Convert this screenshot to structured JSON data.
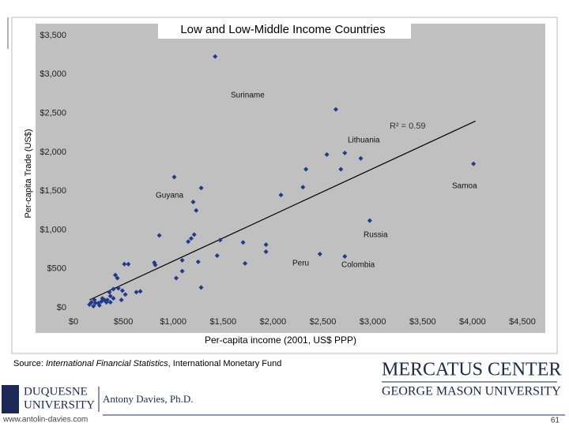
{
  "chart_data": {
    "type": "scatter",
    "title": "Low and Low-Middle Income Countries",
    "x_label": "Per-capita income (2001, US$ PPP)",
    "y_label": "Per-capita Trade (US$)",
    "x": [
      1420,
      2630,
      2540,
      2720,
      2880,
      2330,
      2680,
      4010,
      1010,
      2300,
      2080,
      1280,
      1200,
      1230,
      2970,
      860,
      1210,
      1180,
      1150,
      1470,
      1700,
      1930,
      1930,
      1090,
      1440,
      810,
      820,
      1250,
      1720,
      2470,
      2720,
      510,
      550,
      1090,
      1030,
      1280,
      420,
      440,
      400,
      360,
      450,
      490,
      630,
      670,
      400,
      290,
      370,
      210,
      180,
      200,
      250,
      280,
      330,
      160,
      220,
      260,
      340,
      480,
      520,
      370,
      310
    ],
    "values": [
      3230,
      2550,
      1970,
      1990,
      1920,
      1780,
      1780,
      1850,
      1680,
      1550,
      1450,
      1540,
      1360,
      1250,
      1120,
      930,
      940,
      890,
      850,
      870,
      840,
      810,
      720,
      610,
      670,
      580,
      550,
      590,
      570,
      690,
      660,
      560,
      560,
      470,
      380,
      260,
      420,
      380,
      240,
      200,
      250,
      220,
      200,
      210,
      120,
      120,
      70,
      100,
      70,
      20,
      60,
      80,
      70,
      40,
      60,
      30,
      100,
      100,
      170,
      150,
      100
    ],
    "color": "#1f3a8a",
    "trendline": {
      "x": [
        160,
        4030
      ],
      "y": [
        100,
        2400
      ]
    },
    "r_squared_label": "R² = 0.59",
    "annotations": [
      "Suriname",
      "Lithuania",
      "Samoa",
      "Guyana",
      "Russia",
      "Peru",
      "Colombia"
    ],
    "xlim": [
      0,
      4500
    ],
    "ylim": [
      0,
      3500
    ],
    "xticks": [
      {
        "value": 0,
        "label": "$0"
      },
      {
        "value": 500,
        "label": "$500"
      },
      {
        "value": 1000,
        "label": "$1,000"
      },
      {
        "value": 1500,
        "label": "$1,500"
      },
      {
        "value": 2000,
        "label": "$2,000"
      },
      {
        "value": 2500,
        "label": "$2,500"
      },
      {
        "value": 3000,
        "label": "$3,000"
      },
      {
        "value": 3500,
        "label": "$3,500"
      },
      {
        "value": 4000,
        "label": "$4,000"
      },
      {
        "value": 4500,
        "label": "$4,500"
      }
    ],
    "yticks": [
      {
        "value": 0,
        "label": "$0"
      },
      {
        "value": 500,
        "label": "$500"
      },
      {
        "value": 1000,
        "label": "$1,000"
      },
      {
        "value": 1500,
        "label": "$1,500"
      },
      {
        "value": 2000,
        "label": "$2,000"
      },
      {
        "value": 2500,
        "label": "$2,500"
      },
      {
        "value": 3000,
        "label": "$3,000"
      },
      {
        "value": 3500,
        "label": "$3,500"
      }
    ],
    "grid": false
  },
  "slide": {
    "source_prefix": "Source: ",
    "source_italic": "International Financial Statistics",
    "source_suffix": ", International Monetary Fund",
    "mercatus_top": "MERCATUS CENTER",
    "mercatus_bottom": "GEORGE MASON UNIVERSITY",
    "duquesne_top": "DUQUESNE",
    "duquesne_bottom": "UNIVERSITY",
    "author": "Antony Davies, Ph.D.",
    "website": "www.antolin-davies.com",
    "page_number": "61"
  }
}
